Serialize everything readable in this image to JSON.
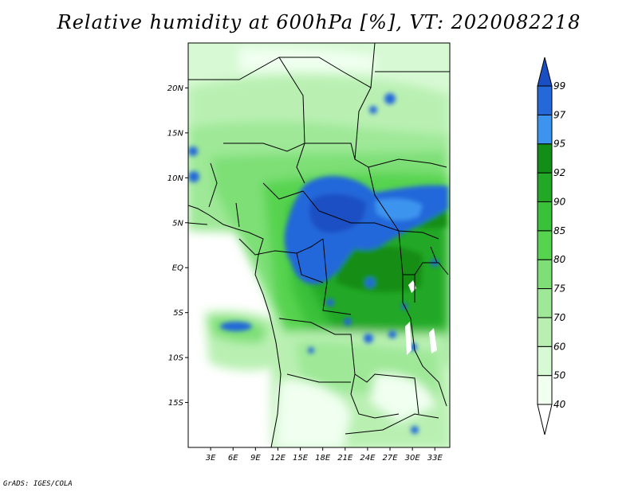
{
  "title": "Relative humidity at 600hPa [%], VT: 2020082218",
  "credit": "GrADS: IGES/COLA",
  "map": {
    "lat_range": [
      -20,
      25
    ],
    "lon_range": [
      0,
      35
    ],
    "lat_ticks": [
      {
        "value": 20,
        "label": "20N"
      },
      {
        "value": 15,
        "label": "15N"
      },
      {
        "value": 10,
        "label": "10N"
      },
      {
        "value": 5,
        "label": "5N"
      },
      {
        "value": 0,
        "label": "EQ"
      },
      {
        "value": -5,
        "label": "5S"
      },
      {
        "value": -10,
        "label": "10S"
      },
      {
        "value": -15,
        "label": "15S"
      }
    ],
    "lon_ticks": [
      {
        "value": 3,
        "label": "3E"
      },
      {
        "value": 6,
        "label": "6E"
      },
      {
        "value": 9,
        "label": "9E"
      },
      {
        "value": 12,
        "label": "12E"
      },
      {
        "value": 15,
        "label": "15E"
      },
      {
        "value": 18,
        "label": "18E"
      },
      {
        "value": 21,
        "label": "21E"
      },
      {
        "value": 24,
        "label": "24E"
      },
      {
        "value": 27,
        "label": "27E"
      },
      {
        "value": 30,
        "label": "30E"
      },
      {
        "value": 33,
        "label": "33E"
      }
    ]
  },
  "colorbar": {
    "levels": [
      {
        "label": "40",
        "color": "#f0fff0"
      },
      {
        "label": "50",
        "color": "#d7f9d4"
      },
      {
        "label": "60",
        "color": "#b9f0b2"
      },
      {
        "label": "70",
        "color": "#9ee897"
      },
      {
        "label": "75",
        "color": "#7ddf76"
      },
      {
        "label": "80",
        "color": "#56d34f"
      },
      {
        "label": "85",
        "color": "#3ac13a"
      },
      {
        "label": "90",
        "color": "#22a826"
      },
      {
        "label": "92",
        "color": "#128e16"
      },
      {
        "label": "95",
        "color": "#3c94ef"
      },
      {
        "label": "97",
        "color": "#2468da"
      },
      {
        "label": "99",
        "color": "#1a4fc4"
      }
    ],
    "below_color": "#ffffff"
  },
  "colors": {
    "ocean": "#ffffff",
    "border": "#000000"
  }
}
